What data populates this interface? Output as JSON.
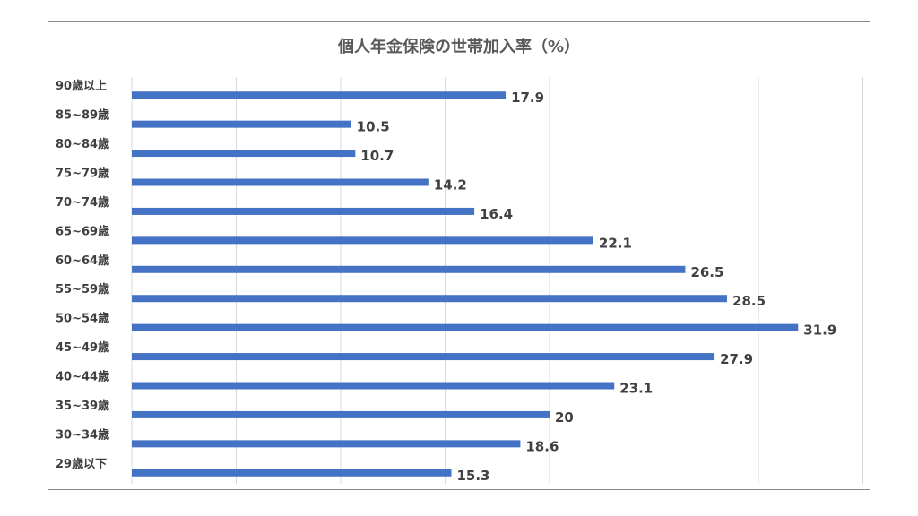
{
  "chart_data": {
    "type": "bar",
    "orientation": "horizontal",
    "title": "個人年金保険の世帯加入率（%）",
    "categories": [
      "90歳以上",
      "85~89歳",
      "80~84歳",
      "75~79歳",
      "70~74歳",
      "65~69歳",
      "60~64歳",
      "55~59歳",
      "50~54歳",
      "45~49歳",
      "40~44歳",
      "35~39歳",
      "30~34歳",
      "29歳以下"
    ],
    "values": [
      17.9,
      10.5,
      10.7,
      14.2,
      16.4,
      22.1,
      26.5,
      28.5,
      31.9,
      27.9,
      23.1,
      20,
      18.6,
      15.3
    ],
    "xlim": [
      0,
      35
    ],
    "grid": true,
    "bar_color": "#4472c4",
    "data_labels": true
  }
}
